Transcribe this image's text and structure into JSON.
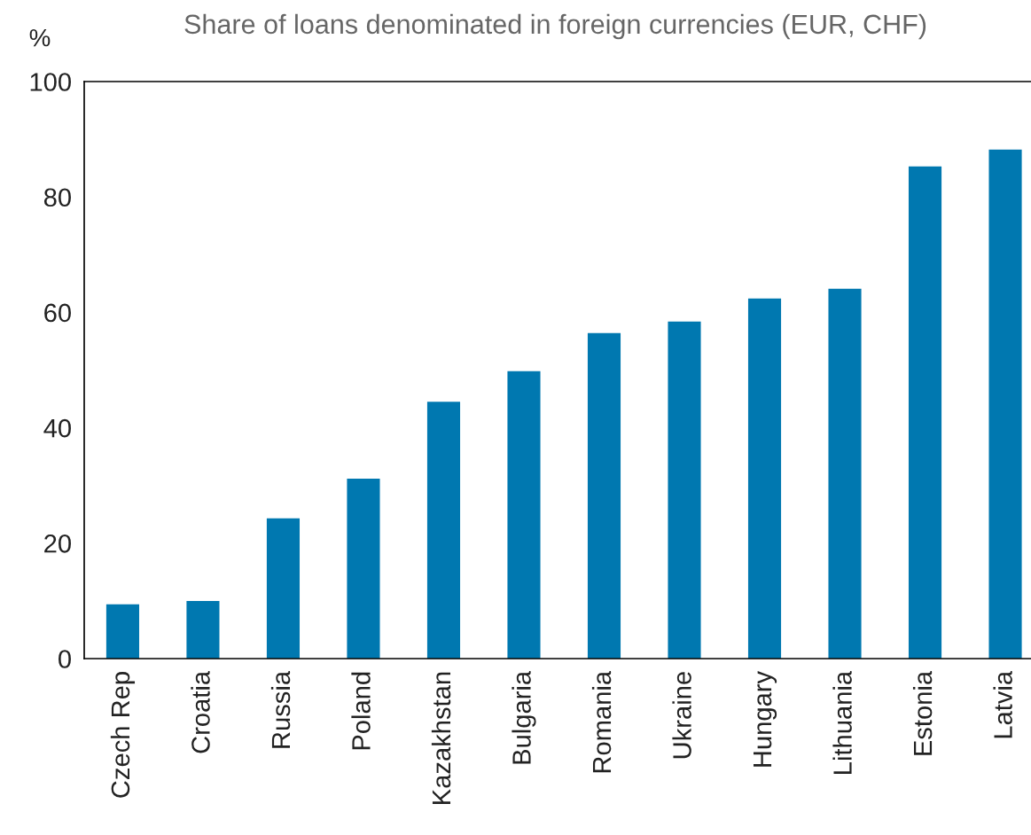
{
  "chart_data": {
    "type": "bar",
    "title": "Share of loans denominated in foreign currencies (EUR, CHF)",
    "ylabel": "%",
    "categories": [
      "Czech Rep",
      "Croatia",
      "Russia",
      "Poland",
      "Kazakhstan",
      "Bulgaria",
      "Romania",
      "Ukraine",
      "Hungary",
      "Lithuania",
      "Estonia",
      "Latvia"
    ],
    "values": [
      9.4,
      10.0,
      24.3,
      31.2,
      44.5,
      49.8,
      56.4,
      58.4,
      62.4,
      64.1,
      85.3,
      88.2
    ],
    "color": "#0078b0",
    "ylim": [
      0,
      100
    ],
    "yticks": [
      0,
      20,
      40,
      60,
      80,
      100
    ],
    "grid": false,
    "legend": false
  }
}
